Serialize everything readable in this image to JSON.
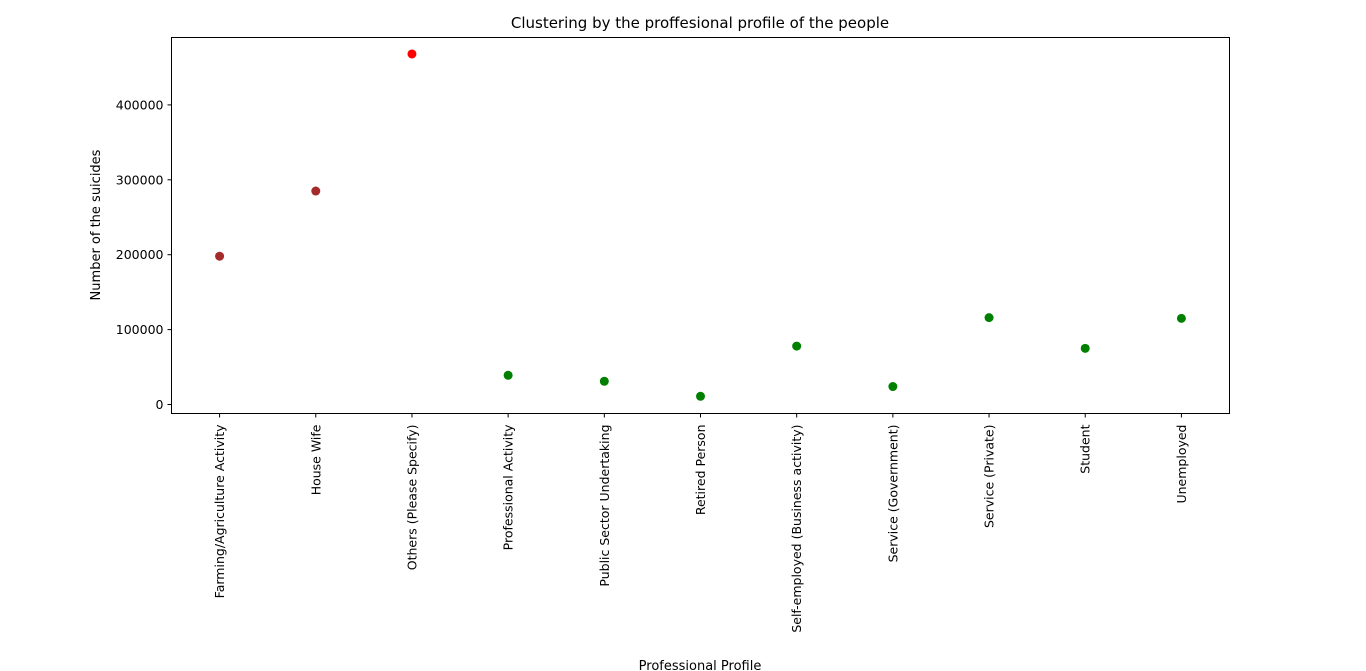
{
  "chart_data": {
    "type": "scatter",
    "title": "Clustering by the proffesional profile of the people",
    "xlabel": "Professional Profile",
    "ylabel": "Number of the suicides",
    "categories": [
      "Farming/Agriculture Activity",
      "House Wife",
      "Others (Please Specify)",
      "Professional Activity",
      "Public Sector Undertaking",
      "Retired Person",
      "Self-employed (Business activity)",
      "Service (Government)",
      "Service (Private)",
      "Student",
      "Unemployed"
    ],
    "values": [
      198000,
      285000,
      468000,
      39000,
      31000,
      11000,
      78000,
      24000,
      116000,
      75000,
      115000
    ],
    "point_colors": [
      "#a52a2a",
      "#a52a2a",
      "#ff0000",
      "#008000",
      "#008000",
      "#008000",
      "#008000",
      "#008000",
      "#008000",
      "#008000",
      "#008000"
    ],
    "ylim": [
      -12000,
      490000
    ],
    "yticks": [
      0,
      100000,
      200000,
      300000,
      400000
    ],
    "ytick_labels": [
      "0",
      "100000",
      "200000",
      "300000",
      "400000"
    ],
    "grid": false
  }
}
